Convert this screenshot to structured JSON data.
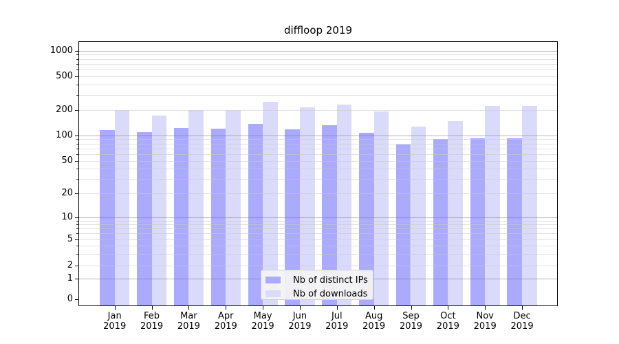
{
  "title": "diffloop 2019",
  "legend": {
    "position": "lower center",
    "items": [
      {
        "label": "Nb of distinct IPs"
      },
      {
        "label": "Nb of downloads"
      }
    ]
  },
  "chart_data": {
    "type": "bar",
    "title": "diffloop 2019",
    "categories": [
      "Jan",
      "Feb",
      "Mar",
      "Apr",
      "May",
      "Jun",
      "Jul",
      "Aug",
      "Sep",
      "Oct",
      "Nov",
      "Dec"
    ],
    "year_label": "2019",
    "series": [
      {
        "name": "Nb of distinct IPs",
        "color": "#aaaaff",
        "values": [
          116,
          109,
          122,
          120,
          136,
          117,
          130,
          107,
          78,
          90,
          92,
          92
        ]
      },
      {
        "name": "Nb of downloads",
        "color": "#dadafb",
        "values": [
          200,
          170,
          199,
          198,
          249,
          214,
          232,
          192,
          127,
          148,
          220,
          224
        ]
      }
    ],
    "y_axis": {
      "scale": "log-like",
      "ticks": [
        1000,
        500,
        200,
        100,
        50,
        20,
        10,
        5,
        2,
        1,
        0
      ],
      "major_gridlines": [
        1,
        10,
        100,
        1000
      ],
      "minor_gridlines": [
        2,
        3,
        4,
        5,
        6,
        7,
        8,
        9,
        20,
        30,
        40,
        50,
        60,
        70,
        80,
        90,
        200,
        300,
        400,
        500,
        600,
        700,
        800,
        900
      ]
    },
    "grid": true,
    "legend_position": "lower center",
    "background": "#ffffff"
  }
}
